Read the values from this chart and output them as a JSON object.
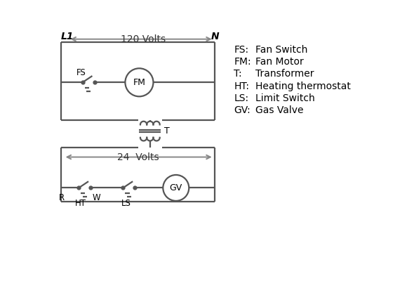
{
  "bg_color": "#ffffff",
  "line_color": "#555555",
  "text_color": "#000000",
  "arrow_color": "#888888",
  "legend_items": [
    [
      "FS:",
      "Fan Switch"
    ],
    [
      "FM:",
      "Fan Motor"
    ],
    [
      "T:",
      "Transformer"
    ],
    [
      "HT:",
      "Heating thermostat"
    ],
    [
      "LS:",
      "Limit Switch"
    ],
    [
      "GV:",
      "Gas Valve"
    ]
  ],
  "label_L1": "L1",
  "label_N": "N",
  "label_120V": "120 Volts",
  "label_24V": "24  Volts",
  "label_T": "T",
  "label_FS": "FS",
  "label_FM": "FM",
  "label_GV": "GV",
  "label_R": "R",
  "label_W": "W",
  "label_HT": "HT",
  "label_LS": "LS"
}
